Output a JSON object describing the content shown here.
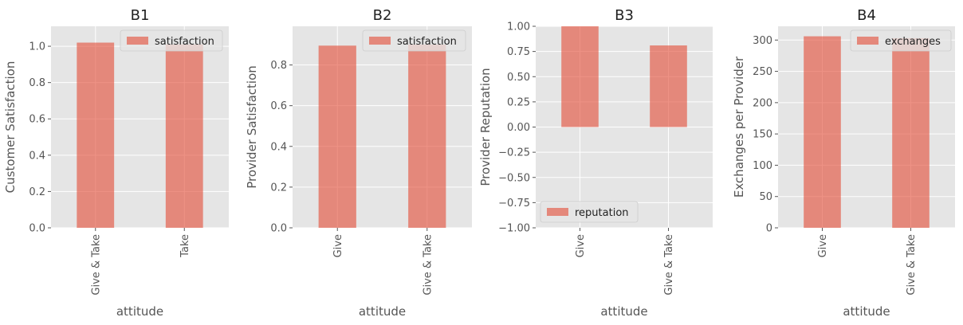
{
  "chart_data": [
    {
      "type": "bar",
      "title": "B1",
      "xlabel": "attitude",
      "ylabel": "Customer Satisfaction",
      "categories": [
        "Give & Take",
        "Take"
      ],
      "series": [
        {
          "name": "satisfaction",
          "values": [
            1.02,
            1.01
          ]
        }
      ],
      "ylim": [
        0,
        1.11
      ],
      "yticks": [
        "0.0",
        "0.2",
        "0.4",
        "0.6",
        "0.8",
        "1.0"
      ],
      "legend": "top-right",
      "grid": true
    },
    {
      "type": "bar",
      "title": "B2",
      "xlabel": "attitude",
      "ylabel": "Provider Satisfaction",
      "categories": [
        "Give",
        "Give & Take"
      ],
      "series": [
        {
          "name": "satisfaction",
          "values": [
            0.895,
            0.9
          ]
        }
      ],
      "ylim": [
        0,
        0.99
      ],
      "yticks": [
        "0.0",
        "0.2",
        "0.4",
        "0.6",
        "0.8"
      ],
      "legend": "top-right",
      "grid": true
    },
    {
      "type": "bar",
      "title": "B3",
      "xlabel": "attitude",
      "ylabel": "Provider Reputation",
      "categories": [
        "Give",
        "Give & Take"
      ],
      "series": [
        {
          "name": "reputation",
          "values": [
            1.0,
            0.81
          ]
        }
      ],
      "ylim": [
        -1.0,
        1.0
      ],
      "yticks": [
        "−1.00",
        "−0.75",
        "−0.50",
        "−0.25",
        "0.00",
        "0.25",
        "0.50",
        "0.75",
        "1.00"
      ],
      "legend": "bottom-left",
      "grid": true
    },
    {
      "type": "bar",
      "title": "B4",
      "xlabel": "attitude",
      "ylabel": "Exchanges per Provider",
      "categories": [
        "Give",
        "Give & Take"
      ],
      "series": [
        {
          "name": "exchanges",
          "values": [
            306,
            303
          ]
        }
      ],
      "ylim": [
        0,
        322
      ],
      "yticks": [
        "0",
        "50",
        "100",
        "150",
        "200",
        "250",
        "300"
      ],
      "legend": "top-right",
      "grid": true
    }
  ],
  "colors": {
    "bar": "#e24a33",
    "bar_opacity": 0.6,
    "axes_bg": "#e5e5e5",
    "grid": "#ffffff",
    "text": "#555555",
    "title": "#222222"
  }
}
